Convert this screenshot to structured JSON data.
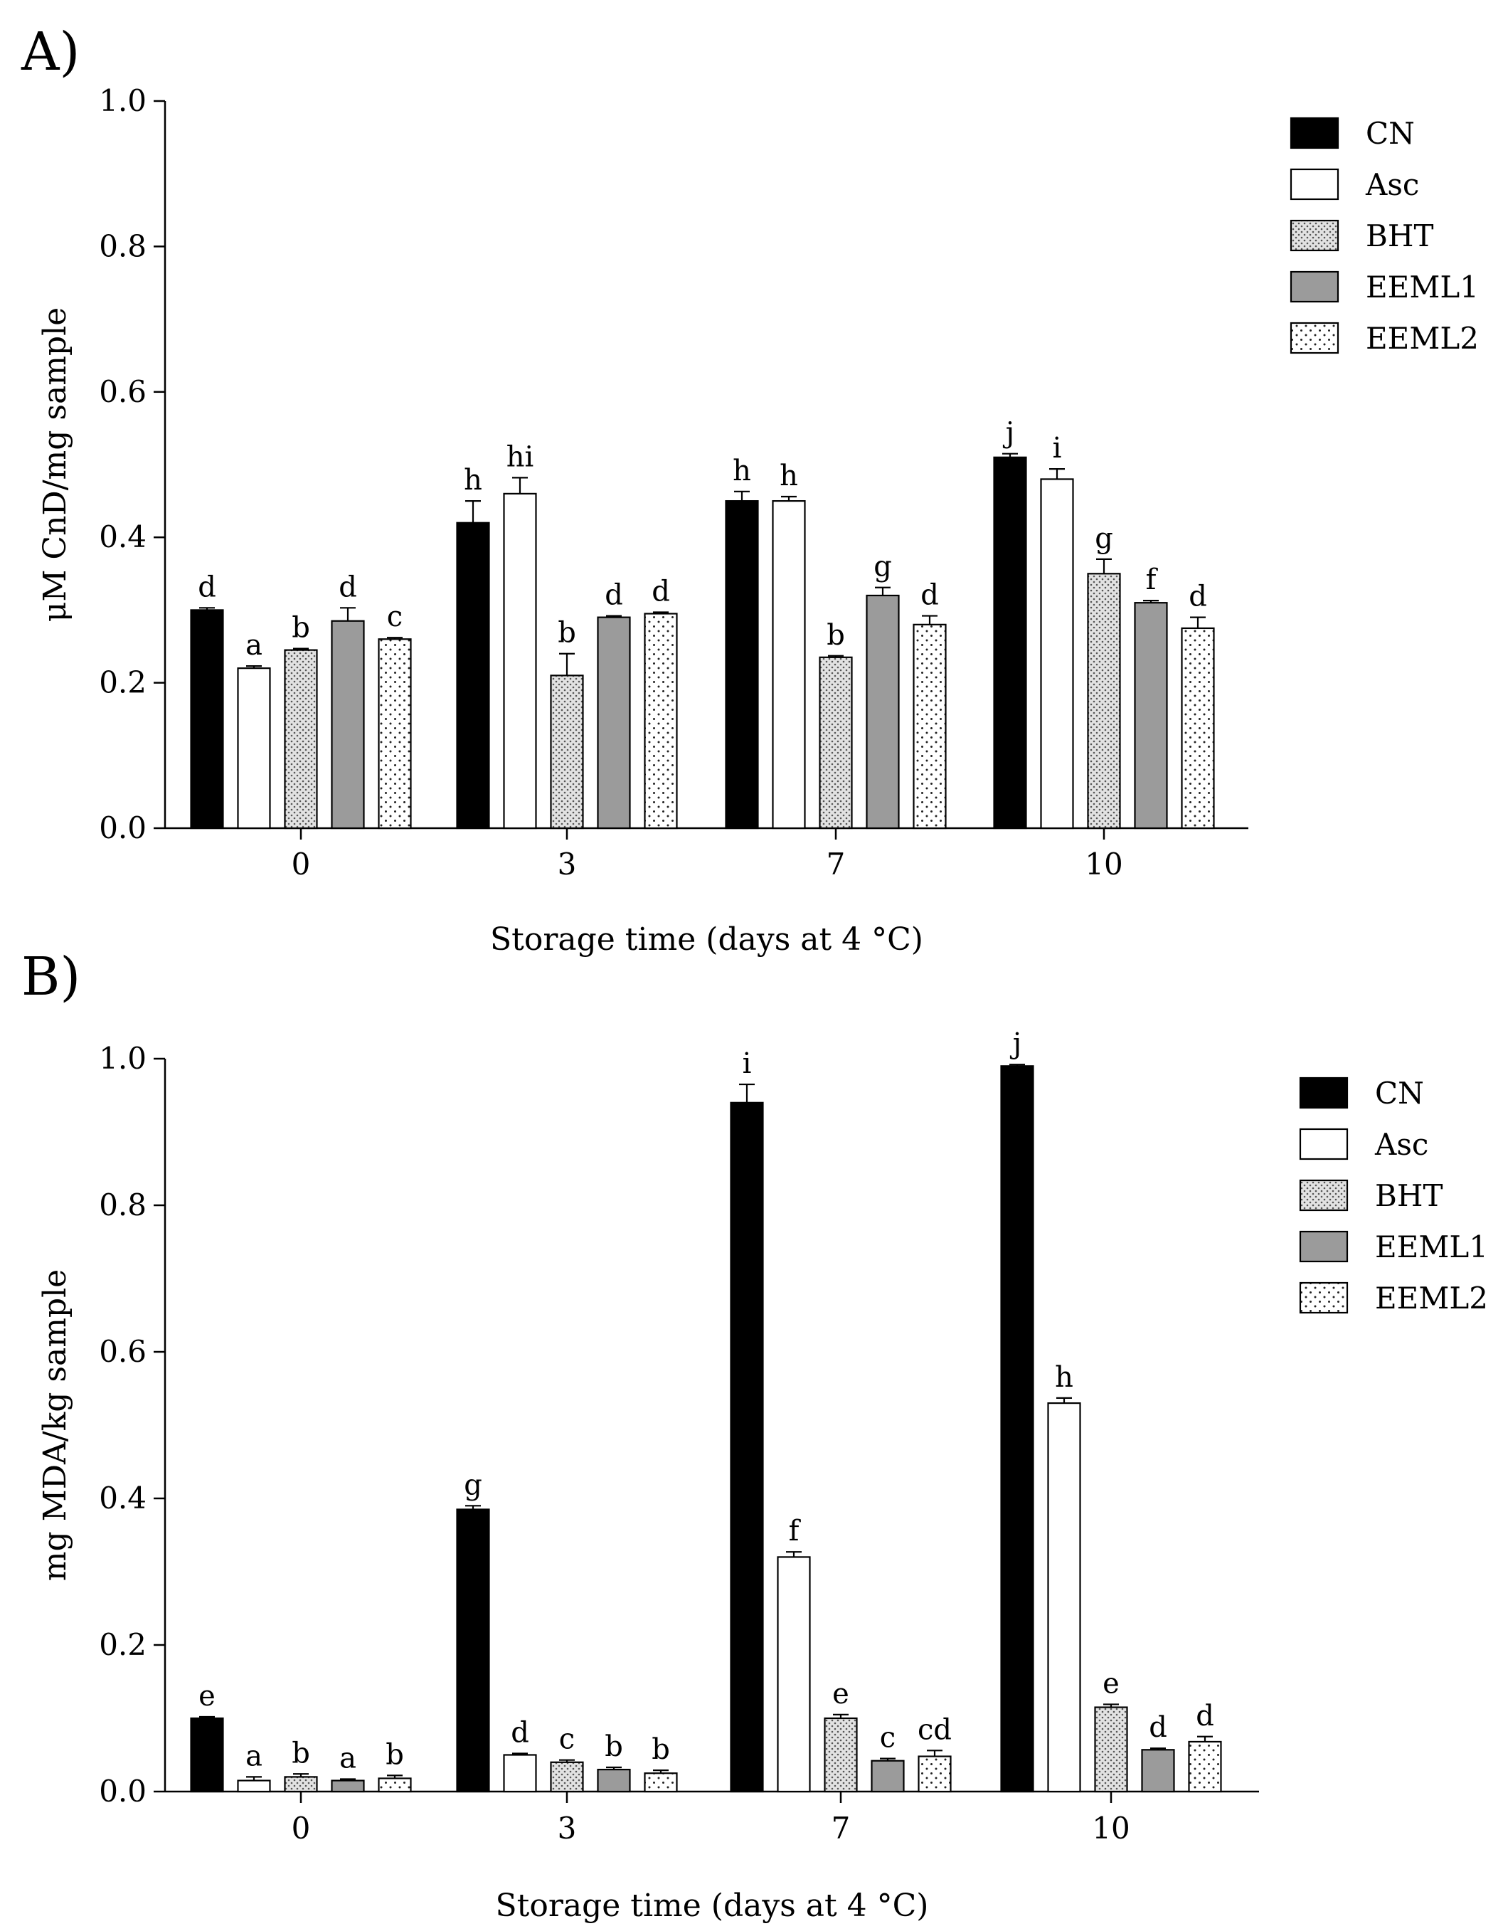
{
  "figure": {
    "series_styles": [
      {
        "name": "CN",
        "fill": "#000000",
        "pattern": "solid"
      },
      {
        "name": "Asc",
        "fill": "#ffffff",
        "pattern": "solid"
      },
      {
        "name": "BHT",
        "fill": "#d9d9d9",
        "pattern": "dense-dots"
      },
      {
        "name": "EEML1",
        "fill": "#9b9b9b",
        "pattern": "solid"
      },
      {
        "name": "EEML2",
        "fill": "#ffffff",
        "pattern": "sparse-dots"
      }
    ]
  },
  "chart_data": [
    {
      "panel_label": "A)",
      "type": "bar",
      "title": "",
      "xlabel": "Storage time (days at 4 °C)",
      "ylabel": "μM CnD/mg sample",
      "ylim": [
        0,
        1.0
      ],
      "yticks": [
        "0.0",
        "0.2",
        "0.4",
        "0.6",
        "0.8",
        "1.0"
      ],
      "categories": [
        "0",
        "3",
        "7",
        "10"
      ],
      "legend_position": "top-right",
      "series": [
        {
          "name": "CN",
          "values": [
            0.3,
            0.42,
            0.45,
            0.51
          ],
          "errors": [
            0.003,
            0.03,
            0.013,
            0.005
          ],
          "labels": [
            "d",
            "h",
            "h",
            "j"
          ]
        },
        {
          "name": "Asc",
          "values": [
            0.22,
            0.46,
            0.45,
            0.48
          ],
          "errors": [
            0.003,
            0.022,
            0.006,
            0.014
          ],
          "labels": [
            "a",
            "hi",
            "h",
            "i"
          ]
        },
        {
          "name": "BHT",
          "values": [
            0.245,
            0.21,
            0.235,
            0.35
          ],
          "errors": [
            0.002,
            0.03,
            0.002,
            0.02
          ],
          "labels": [
            "b",
            "b",
            "b",
            "g"
          ]
        },
        {
          "name": "EEML1",
          "values": [
            0.285,
            0.29,
            0.32,
            0.31
          ],
          "errors": [
            0.018,
            0.002,
            0.011,
            0.003
          ],
          "labels": [
            "d",
            "d",
            "g",
            "f"
          ]
        },
        {
          "name": "EEML2",
          "values": [
            0.26,
            0.295,
            0.28,
            0.275
          ],
          "errors": [
            0.002,
            0.002,
            0.012,
            0.015
          ],
          "labels": [
            "c",
            "d",
            "d",
            "d"
          ]
        }
      ]
    },
    {
      "panel_label": "B)",
      "type": "bar",
      "title": "",
      "xlabel": "Storage time (days at 4 °C)",
      "ylabel": "mg MDA/kg sample",
      "ylim": [
        0,
        1.0
      ],
      "yticks": [
        "0.0",
        "0.2",
        "0.4",
        "0.6",
        "0.8",
        "1.0"
      ],
      "categories": [
        "0",
        "3",
        "7",
        "10"
      ],
      "legend_position": "top-right",
      "series": [
        {
          "name": "CN",
          "values": [
            0.1,
            0.385,
            0.94,
            0.99
          ],
          "errors": [
            0.002,
            0.005,
            0.025,
            0.002
          ],
          "labels": [
            "e",
            "g",
            "i",
            "j"
          ]
        },
        {
          "name": "Asc",
          "values": [
            0.015,
            0.05,
            0.32,
            0.53
          ],
          "errors": [
            0.005,
            0.002,
            0.007,
            0.007
          ],
          "labels": [
            "a",
            "d",
            "f",
            "h"
          ]
        },
        {
          "name": "BHT",
          "values": [
            0.02,
            0.04,
            0.1,
            0.115
          ],
          "errors": [
            0.004,
            0.003,
            0.005,
            0.004
          ],
          "labels": [
            "b",
            "c",
            "e",
            "e"
          ]
        },
        {
          "name": "EEML1",
          "values": [
            0.015,
            0.03,
            0.042,
            0.057
          ],
          "errors": [
            0.002,
            0.003,
            0.003,
            0.002
          ],
          "labels": [
            "a",
            "b",
            "c",
            "d"
          ]
        },
        {
          "name": "EEML2",
          "values": [
            0.018,
            0.025,
            0.048,
            0.068
          ],
          "errors": [
            0.004,
            0.004,
            0.008,
            0.007
          ],
          "labels": [
            "b",
            "b",
            "cd",
            "d"
          ]
        }
      ]
    }
  ]
}
